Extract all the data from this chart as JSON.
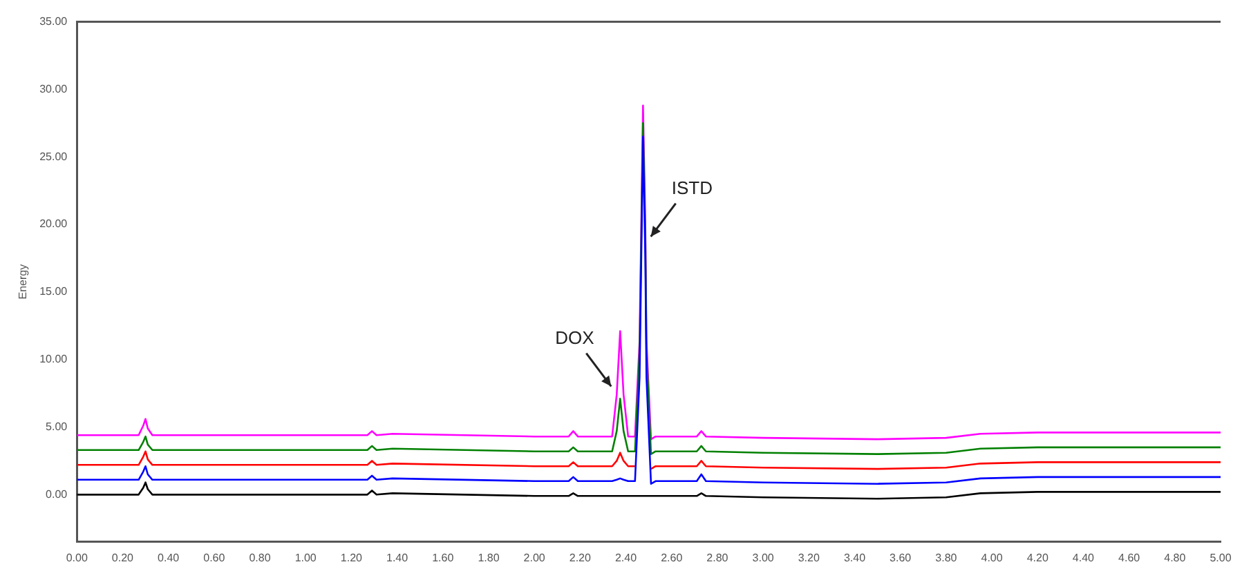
{
  "chart_data": {
    "type": "line",
    "ylabel": "Energy",
    "x": [
      0,
      0.27,
      0.29,
      0.3,
      0.31,
      0.33,
      1.0,
      1.27,
      1.29,
      1.31,
      1.38,
      2.0,
      2.15,
      2.17,
      2.19,
      2.34,
      2.36,
      2.375,
      2.39,
      2.41,
      2.44,
      2.46,
      2.475,
      2.485,
      2.49,
      2.51,
      2.53,
      2.71,
      2.73,
      2.75,
      3.0,
      3.5,
      3.8,
      3.95,
      4.2,
      5.0
    ],
    "series": [
      {
        "color": "#000000",
        "values": [
          0,
          0,
          0.5,
          0.9,
          0.4,
          0,
          0,
          0,
          0.3,
          0,
          0.1,
          -0.1,
          -0.1,
          0.1,
          -0.1,
          -0.1,
          -0.1,
          -0.1,
          -0.1,
          -0.1,
          -0.1,
          -0.1,
          -0.1,
          -0.1,
          -0.1,
          -0.1,
          -0.1,
          -0.1,
          0.1,
          -0.1,
          -0.2,
          -0.3,
          -0.2,
          0.1,
          0.2,
          0.2
        ]
      },
      {
        "color": "#0000ff",
        "values": [
          1.1,
          1.1,
          1.7,
          2.1,
          1.5,
          1.1,
          1.1,
          1.1,
          1.4,
          1.1,
          1.2,
          1.0,
          1.0,
          1.3,
          1.0,
          1.0,
          1.1,
          1.2,
          1.1,
          1.0,
          1.0,
          8.7,
          26.5,
          17.6,
          8.7,
          0.8,
          1.0,
          1.0,
          1.5,
          1.0,
          0.9,
          0.8,
          0.9,
          1.2,
          1.3,
          1.3
        ]
      },
      {
        "color": "#ff0000",
        "values": [
          2.2,
          2.2,
          2.8,
          3.2,
          2.6,
          2.2,
          2.2,
          2.2,
          2.5,
          2.2,
          2.3,
          2.1,
          2.1,
          2.4,
          2.1,
          2.1,
          2.5,
          3.1,
          2.5,
          2.1,
          2.1,
          null,
          null,
          null,
          null,
          1.9,
          2.1,
          2.1,
          2.5,
          2.1,
          2.0,
          1.9,
          2.0,
          2.3,
          2.4,
          2.4
        ]
      },
      {
        "color": "#008000",
        "values": [
          3.3,
          3.3,
          3.9,
          4.3,
          3.7,
          3.3,
          3.3,
          3.3,
          3.6,
          3.3,
          3.4,
          3.2,
          3.2,
          3.5,
          3.2,
          3.2,
          4.7,
          7.1,
          4.7,
          3.2,
          3.2,
          10.6,
          27.5,
          19.1,
          10.6,
          3.0,
          3.2,
          3.2,
          3.6,
          3.2,
          3.1,
          3.0,
          3.1,
          3.4,
          3.5,
          3.5
        ]
      },
      {
        "color": "#ff00ff",
        "values": [
          4.4,
          4.4,
          5.1,
          5.6,
          4.9,
          4.4,
          4.4,
          4.4,
          4.7,
          4.4,
          4.5,
          4.3,
          4.3,
          4.7,
          4.3,
          4.3,
          7.4,
          12.1,
          7.4,
          4.3,
          4.3,
          11.4,
          28.8,
          20.1,
          11.4,
          4.1,
          4.3,
          4.3,
          4.7,
          4.3,
          4.2,
          4.1,
          4.2,
          4.5,
          4.6,
          4.6
        ]
      }
    ],
    "xlim": [
      0,
      5
    ],
    "xticks": [
      {
        "value": 0,
        "label": "0.00"
      },
      {
        "value": 0.2,
        "label": "0.20"
      },
      {
        "value": 0.4,
        "label": "0.40"
      },
      {
        "value": 0.6,
        "label": "0.60"
      },
      {
        "value": 0.8,
        "label": "0.80"
      },
      {
        "value": 1,
        "label": "1.00"
      },
      {
        "value": 1.2,
        "label": "1.20"
      },
      {
        "value": 1.4,
        "label": "1.40"
      },
      {
        "value": 1.6,
        "label": "1.60"
      },
      {
        "value": 1.8,
        "label": "1.80"
      },
      {
        "value": 2,
        "label": "2.00"
      },
      {
        "value": 2.2,
        "label": "2.20"
      },
      {
        "value": 2.4,
        "label": "2.40"
      },
      {
        "value": 2.6,
        "label": "2.60"
      },
      {
        "value": 2.8,
        "label": "2.80"
      },
      {
        "value": 3,
        "label": "3.00"
      },
      {
        "value": 3.2,
        "label": "3.20"
      },
      {
        "value": 3.4,
        "label": "3.40"
      },
      {
        "value": 3.6,
        "label": "3.60"
      },
      {
        "value": 3.8,
        "label": "3.80"
      },
      {
        "value": 4,
        "label": "4.00"
      },
      {
        "value": 4.2,
        "label": "4.20"
      },
      {
        "value": 4.4,
        "label": "4.40"
      },
      {
        "value": 4.6,
        "label": "4.60"
      },
      {
        "value": 4.8,
        "label": "4.80"
      },
      {
        "value": 5,
        "label": "5.00"
      }
    ],
    "ylim": [
      -3.5,
      35
    ],
    "yticks": [
      {
        "value": 0,
        "label": "0.00"
      },
      {
        "value": 5,
        "label": "5.00"
      },
      {
        "value": 10,
        "label": "10.00"
      },
      {
        "value": 15,
        "label": "15.00"
      },
      {
        "value": 20,
        "label": "20.00"
      },
      {
        "value": 25,
        "label": "25.00"
      },
      {
        "value": 30,
        "label": "30.00"
      },
      {
        "value": 35,
        "label": "35.00"
      }
    ],
    "annotations": [
      {
        "text": "DOX",
        "x": 2.36,
        "y": 7.4
      },
      {
        "text": "ISTD",
        "x": 2.485,
        "y": 19.1
      }
    ],
    "grid": false,
    "legend": false,
    "marker": "none",
    "line_style": "solid"
  }
}
